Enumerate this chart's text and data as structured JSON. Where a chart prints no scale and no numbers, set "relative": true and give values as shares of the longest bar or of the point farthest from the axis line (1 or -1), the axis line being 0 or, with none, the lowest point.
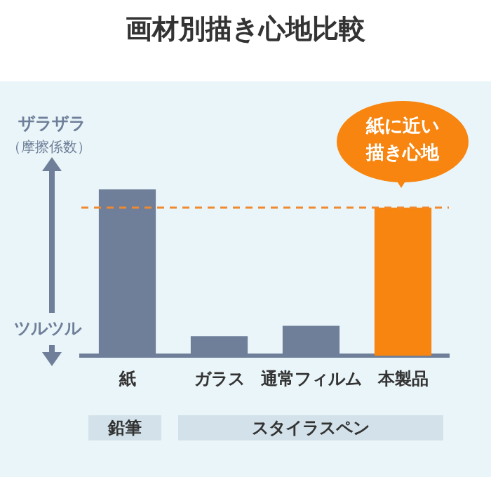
{
  "chart_data": {
    "type": "bar",
    "title": "画材別描き心地比較",
    "relative": true,
    "categories": [
      "紙",
      "ガラス",
      "通常フィルム",
      "本製品"
    ],
    "values": [
      1,
      0.118,
      0.18,
      0.89
    ],
    "colors": [
      "#6f7f99",
      "#6f7f99",
      "#6f7f99",
      "#f7850f"
    ],
    "ref_lines": [
      {
        "axis": "y",
        "value": 0.89,
        "color": "#f08a30",
        "line_style": "dashed"
      }
    ],
    "annotations": [
      "ザラザラ",
      "（摩擦係数）",
      "ツルツル",
      "紙に近い描き心地",
      "鉛筆",
      "スタイラスペン"
    ],
    "grid": false,
    "legend": false
  }
}
